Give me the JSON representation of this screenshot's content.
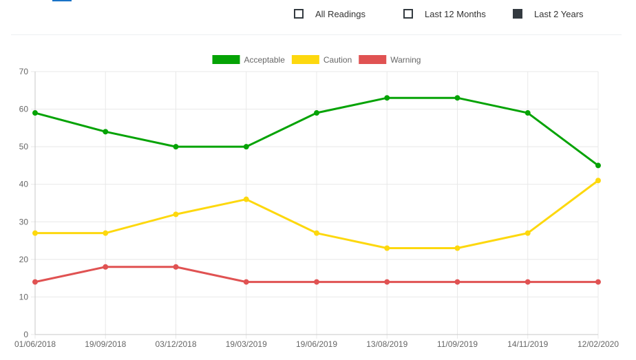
{
  "filters": {
    "options": [
      {
        "label": "All Readings",
        "checked": false
      },
      {
        "label": "Last 12 Months",
        "checked": false
      },
      {
        "label": "Last 2 Years",
        "checked": true
      }
    ]
  },
  "colors": {
    "acceptable": "#05a305",
    "caution": "#fdd80e",
    "warning": "#e05252",
    "grid": "#e8e8e8",
    "checkbox": "#333a40"
  },
  "chart_data": {
    "type": "line",
    "title": "",
    "xlabel": "",
    "ylabel": "",
    "categories": [
      "01/06/2018",
      "19/09/2018",
      "03/12/2018",
      "19/03/2019",
      "19/06/2019",
      "13/08/2019",
      "11/09/2019",
      "14/11/2019",
      "12/02/2020"
    ],
    "ylim": [
      0,
      70
    ],
    "yticks": [
      0,
      10,
      20,
      30,
      40,
      50,
      60,
      70
    ],
    "grid": true,
    "legend": "top-center",
    "series": [
      {
        "name": "Acceptable",
        "color": "#05a305",
        "values": [
          59,
          54,
          50,
          50,
          59,
          63,
          63,
          59,
          45
        ]
      },
      {
        "name": "Caution",
        "color": "#fdd80e",
        "values": [
          27,
          27,
          32,
          36,
          27,
          23,
          23,
          27,
          41
        ]
      },
      {
        "name": "Warning",
        "color": "#e05252",
        "values": [
          14,
          18,
          18,
          14,
          14,
          14,
          14,
          14,
          14
        ]
      }
    ]
  }
}
